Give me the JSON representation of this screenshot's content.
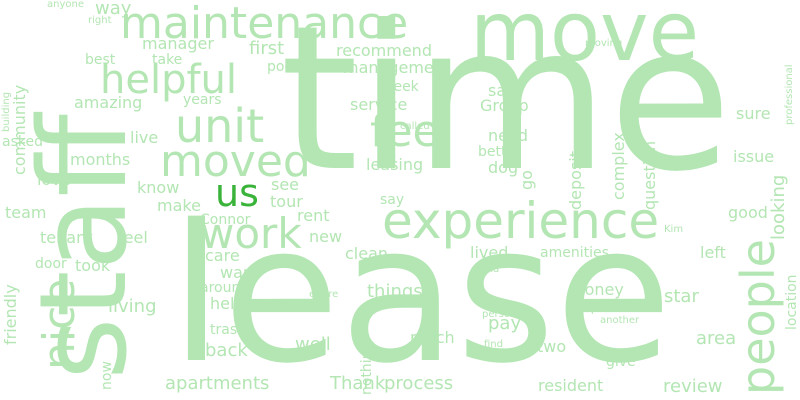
{
  "words": [
    "move",
    "time",
    "staff",
    "lease",
    "maintenance",
    "helpful",
    "moved",
    "unit",
    "fee",
    "experience",
    "work",
    "people",
    "nice",
    "us",
    "community",
    "friendly",
    "manager",
    "management",
    "recommend",
    "first",
    "pool",
    "said",
    "Group",
    "service",
    "week",
    "need",
    "better",
    "dog",
    "leasing",
    "complex",
    "deposit",
    "question",
    "issue",
    "looking",
    "location",
    "professional",
    "good",
    "sure",
    "live",
    "months",
    "love",
    "know",
    "make",
    "see",
    "tour",
    "rent",
    "new",
    "clean",
    "lived",
    "amenities",
    "left",
    "care",
    "want",
    "around",
    "help",
    "living",
    "feel",
    "tenant",
    "team",
    "door",
    "took",
    "things",
    "money",
    "star",
    "area",
    "pay",
    "two",
    "much",
    "give",
    "resident",
    "review",
    "apartments",
    "process",
    "Thank",
    "back",
    "well",
    "trash",
    "now",
    "years",
    "take",
    "best",
    "way",
    "amazing",
    "anyone",
    "right",
    "asked",
    "moving",
    "building",
    "say",
    "Connor",
    "Kim",
    "called",
    "kind",
    "entire",
    "person",
    "put",
    "another",
    "nothing",
    "find",
    "go"
  ],
  "accent_word": "us",
  "colors": {
    "word": "#b3e6b3",
    "accent": "#3ab33a",
    "background": "#ffffff"
  }
}
